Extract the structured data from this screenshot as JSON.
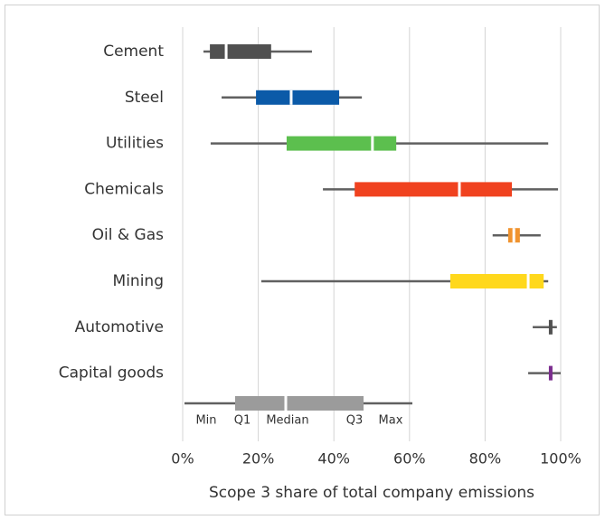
{
  "chart_data": {
    "type": "boxplot",
    "orientation": "horizontal",
    "categories": [
      "Cement",
      "Steel",
      "Utilities",
      "Chemicals",
      "Oil & Gas",
      "Mining",
      "Automotive",
      "Capital goods"
    ],
    "colors": [
      "#505050",
      "#0b5aa8",
      "#5cbf4e",
      "#f0421f",
      "#f0932e",
      "#ffd81c",
      "#505050",
      "#7b2d8e"
    ],
    "min": [
      5.5,
      10.3,
      7.4,
      37.1,
      82.0,
      20.8,
      92.6,
      91.4
    ],
    "q1": [
      7.2,
      19.4,
      27.5,
      45.5,
      86.1,
      70.8,
      96.9,
      96.9
    ],
    "median": [
      11.5,
      28.7,
      50.2,
      73.2,
      87.6,
      91.4,
      97.4,
      97.4
    ],
    "q3": [
      23.4,
      41.4,
      56.5,
      87.1,
      89.2,
      95.5,
      97.8,
      97.8
    ],
    "max": [
      34.2,
      47.4,
      96.7,
      99.3,
      94.7,
      96.7,
      99.0,
      100.0
    ],
    "legend_labels": [
      "Min",
      "Q1",
      "Median",
      "Q3",
      "Max"
    ],
    "xlabel": "Scope 3 share of total company emissions",
    "xlim": [
      0,
      100
    ],
    "xticks": [
      {
        "value": 0,
        "label": "0%"
      },
      {
        "value": 20,
        "label": "20%"
      },
      {
        "value": 40,
        "label": "40%"
      },
      {
        "value": 60,
        "label": "60%"
      },
      {
        "value": 80,
        "label": "80%"
      },
      {
        "value": 100,
        "label": "100%"
      }
    ],
    "grid": true
  }
}
